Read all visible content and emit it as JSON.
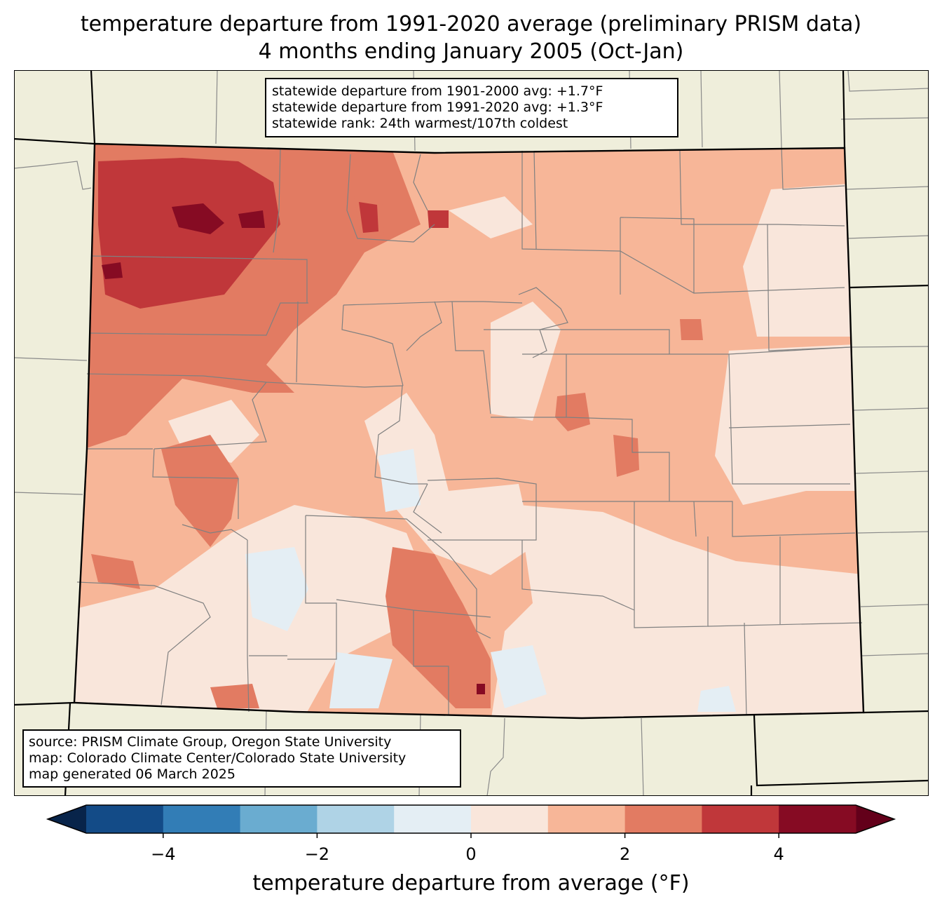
{
  "title": {
    "line1": "temperature departure from 1991-2020 average (preliminary PRISM data)",
    "line2": "4 months ending January 2005 (Oct-Jan)"
  },
  "stats": {
    "line1": "statewide departure from 1901-2000 avg: +1.7°F",
    "line2": "statewide departure from 1991-2020 avg: +1.3°F",
    "line3": "statewide rank: 24th warmest/107th coldest"
  },
  "credits": {
    "line1": "source: PRISM Climate Group, Oregon State University",
    "line2": "map: Colorado Climate Center/Colorado State University",
    "line3": "map generated 06 March 2025"
  },
  "colorbar": {
    "label": "temperature departure from average (°F)",
    "ticks": [
      {
        "value": -4,
        "label": "−4"
      },
      {
        "value": -2,
        "label": "−2"
      },
      {
        "value": 0,
        "label": "0"
      },
      {
        "value": 2,
        "label": "2"
      },
      {
        "value": 4,
        "label": "4"
      }
    ],
    "min": -5,
    "max": 5,
    "step": 1,
    "colors": [
      "#134b87",
      "#327db6",
      "#6aacd0",
      "#afd3e6",
      "#e4eef4",
      "#f9e6db",
      "#f7b698",
      "#e27b62",
      "#c0373a",
      "#860b23"
    ],
    "under_color": "#08244a",
    "over_color": "#63001a"
  },
  "map": {
    "land_color": "#efeedb",
    "state_fill_base": "#f7b698",
    "anomaly_regions": [
      {
        "level": "+3 to +4",
        "area": "northwest"
      },
      {
        "level": "+4 to +5",
        "area": "north-central mountains"
      },
      {
        "level": "+2 to +3",
        "area": "western slope"
      },
      {
        "level": "0 to +1",
        "area": "south and southeast"
      },
      {
        "level": "-1 to 0",
        "area": "San Luis Valley"
      },
      {
        "level": "+2 to +3",
        "area": "Sangre de Cristo"
      }
    ]
  }
}
